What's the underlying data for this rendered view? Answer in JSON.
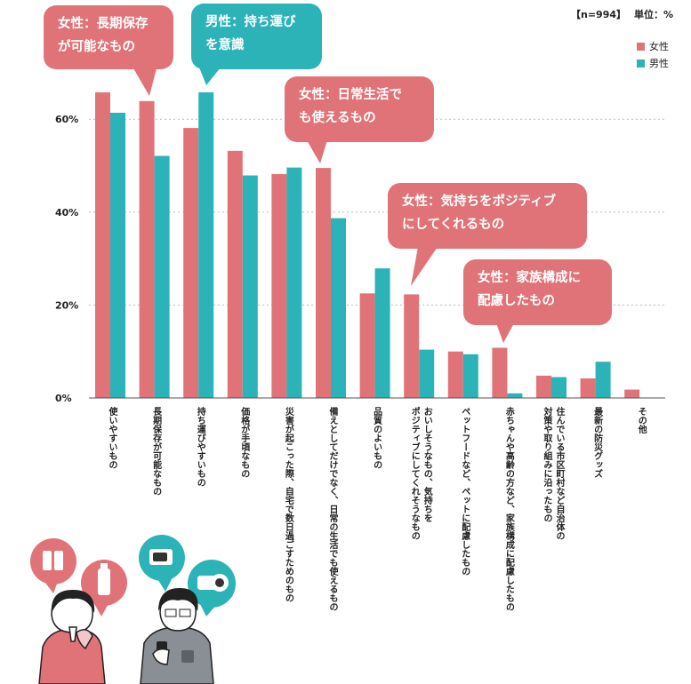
{
  "meta": {
    "sample": "【n=994】",
    "unit": "単位：%"
  },
  "legend": {
    "female": "女性",
    "male": "男性"
  },
  "colors": {
    "female": "#e07378",
    "male": "#2bb3b8",
    "ink": "#222222",
    "grid": "#bbbbbb"
  },
  "callouts": [
    {
      "text": "女性：長期保存\nが可能なもの",
      "gender": "female"
    },
    {
      "text": "男性：持ち運び\nを意識",
      "gender": "male"
    },
    {
      "text": "女性：日常生活で\nも使えるもの",
      "gender": "female"
    },
    {
      "text": "女性：気持ちをポジティブ\nにしてくれるもの",
      "gender": "female"
    },
    {
      "text": "女性：家族構成に\n配慮したもの",
      "gender": "female"
    }
  ],
  "icons": [
    "battery-icon",
    "water-bottle-icon",
    "power-bank-icon",
    "flashlight-icon",
    "woman-illustration",
    "man-with-phone-illustration"
  ],
  "chart_data": {
    "type": "bar",
    "categories": [
      "使いやすいもの",
      "長期保存が可能なもの",
      "持ち運びやすいもの",
      "価格が手頃なもの",
      "災害が起こった際、自宅で数日過ごすためのもの",
      "備えとしてだけでなく、日常の生活でも使えるもの",
      "品質のよいもの",
      "おいしそうなもの、気持ちを\nポジティブにしてくれそうなもの",
      "ペットフードなど、ペットに配慮したもの",
      "赤ちゃんや高齢の方など、家族構成に配慮したもの",
      "住んでいる市区町村など自治体の\n対策や取り組みに沿ったもの",
      "最新の防災グッズ",
      "その他"
    ],
    "series": [
      {
        "name": "女性",
        "values": [
          65.8,
          63.9,
          58.1,
          53.2,
          48.2,
          49.5,
          22.5,
          22.3,
          10.0,
          10.8,
          4.8,
          4.2,
          1.8
        ]
      },
      {
        "name": "男性",
        "values": [
          61.4,
          52.1,
          65.8,
          47.9,
          49.6,
          38.7,
          27.9,
          10.4,
          9.4,
          1.0,
          4.5,
          7.8,
          0
        ]
      }
    ],
    "yticks": [
      "0%",
      "20%",
      "40%",
      "60%"
    ],
    "ylim": [
      0,
      80
    ],
    "legend_position": "top-right",
    "grid": true
  }
}
